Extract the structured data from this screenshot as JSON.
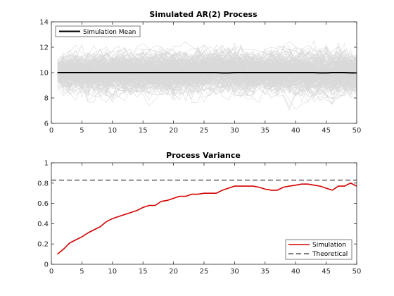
{
  "chart_data": [
    {
      "type": "line",
      "title": "Simulated AR(2) Process",
      "xlim": [
        0,
        50
      ],
      "ylim": [
        6,
        14
      ],
      "xticks": [
        0,
        5,
        10,
        15,
        20,
        25,
        30,
        35,
        40,
        45,
        50
      ],
      "yticks": [
        6,
        8,
        10,
        12,
        14
      ],
      "grid": false,
      "legend_position": "top-left",
      "simulation_paths": {
        "description_color": "#d9d9d9",
        "count": 200,
        "x_range": [
          1,
          50
        ],
        "center": 10,
        "spread_start": 0.42,
        "spread_end": 0.91
      },
      "series": [
        {
          "name": "Simulation Mean",
          "color": "#000000",
          "x": [
            1,
            2,
            3,
            4,
            5,
            6,
            7,
            8,
            9,
            10,
            11,
            12,
            13,
            14,
            15,
            16,
            17,
            18,
            19,
            20,
            21,
            22,
            23,
            24,
            25,
            26,
            27,
            28,
            29,
            30,
            31,
            32,
            33,
            34,
            35,
            36,
            37,
            38,
            39,
            40,
            41,
            42,
            43,
            44,
            45,
            46,
            47,
            48,
            49,
            50
          ],
          "y": [
            10.0,
            10.0,
            10.0,
            10.0,
            10.0,
            10.0,
            10.0,
            10.0,
            10.0,
            10.0,
            10.0,
            10.0,
            10.0,
            10.0,
            10.0,
            10.0,
            10.0,
            10.0,
            10.0,
            10.0,
            10.0,
            10.0,
            10.0,
            10.0,
            10.0,
            10.0,
            10.0,
            9.98,
            9.98,
            10.0,
            10.0,
            10.0,
            10.0,
            10.0,
            10.0,
            10.0,
            10.0,
            10.0,
            10.0,
            10.0,
            10.0,
            10.0,
            10.0,
            9.98,
            9.98,
            10.0,
            10.0,
            10.0,
            9.98,
            9.98
          ]
        }
      ]
    },
    {
      "type": "line",
      "title": "Process Variance",
      "xlim": [
        0,
        50
      ],
      "ylim": [
        0,
        1
      ],
      "xticks": [
        0,
        5,
        10,
        15,
        20,
        25,
        30,
        35,
        40,
        45,
        50
      ],
      "yticks": [
        0,
        0.2,
        0.4,
        0.6,
        0.8,
        1
      ],
      "grid": false,
      "legend_position": "bottom-right",
      "series": [
        {
          "name": "Simulation",
          "color": "#d40000",
          "style": "solid",
          "x": [
            1,
            2,
            3,
            4,
            5,
            6,
            7,
            8,
            9,
            10,
            11,
            12,
            13,
            14,
            15,
            16,
            17,
            18,
            19,
            20,
            21,
            22,
            23,
            24,
            25,
            26,
            27,
            28,
            29,
            30,
            31,
            32,
            33,
            34,
            35,
            36,
            37,
            38,
            39,
            40,
            41,
            42,
            43,
            44,
            45,
            46,
            47,
            48,
            49,
            50
          ],
          "y": [
            0.1,
            0.15,
            0.21,
            0.24,
            0.27,
            0.31,
            0.34,
            0.37,
            0.42,
            0.45,
            0.47,
            0.49,
            0.51,
            0.53,
            0.56,
            0.58,
            0.58,
            0.62,
            0.63,
            0.65,
            0.67,
            0.67,
            0.69,
            0.69,
            0.7,
            0.7,
            0.7,
            0.73,
            0.75,
            0.77,
            0.77,
            0.77,
            0.77,
            0.76,
            0.74,
            0.73,
            0.73,
            0.76,
            0.77,
            0.78,
            0.79,
            0.79,
            0.78,
            0.77,
            0.75,
            0.73,
            0.77,
            0.77,
            0.8,
            0.77
          ]
        },
        {
          "name": "Theoretical",
          "color": "#000000",
          "style": "dashed",
          "x": [
            0,
            50
          ],
          "y": [
            0.83,
            0.83
          ]
        }
      ]
    }
  ]
}
